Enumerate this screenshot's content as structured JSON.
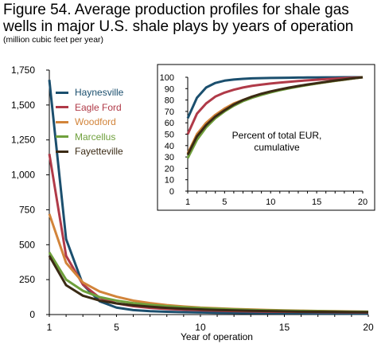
{
  "header": {
    "title": "Figure 54. Average production profiles for shale gas wells in major U.S. shale plays by years of operation",
    "subtitle": "(million cubic feet per year)"
  },
  "chart_data": [
    {
      "type": "line",
      "title": "",
      "xlabel": "Year of operation",
      "ylabel": "",
      "xlim": [
        1,
        20
      ],
      "ylim": [
        0,
        1750
      ],
      "x_ticks": [
        "1",
        "5",
        "10",
        "15",
        "20"
      ],
      "y_ticks": [
        "0",
        "250",
        "500",
        "750",
        "1,000",
        "1,250",
        "1,500",
        "1,750"
      ],
      "x": [
        1,
        2,
        3,
        4,
        5,
        6,
        7,
        8,
        9,
        10,
        11,
        12,
        13,
        14,
        15,
        16,
        17,
        18,
        19,
        20
      ],
      "legend_position": "top-left",
      "series": [
        {
          "name": "Haynesville",
          "color": "#1b4f6e",
          "values": [
            1680,
            540,
            215,
            95,
            50,
            32,
            24,
            20,
            17,
            15,
            13,
            12,
            11,
            10,
            9,
            9,
            8,
            8,
            7,
            7
          ]
        },
        {
          "name": "Eagle Ford",
          "color": "#b03a48",
          "values": [
            1150,
            420,
            215,
            120,
            80,
            60,
            48,
            40,
            35,
            31,
            28,
            25,
            23,
            21,
            20,
            19,
            18,
            17,
            16,
            15
          ]
        },
        {
          "name": "Woodford",
          "color": "#d2843a",
          "values": [
            720,
            370,
            230,
            165,
            128,
            100,
            82,
            68,
            58,
            50,
            45,
            40,
            36,
            33,
            30,
            28,
            26,
            24,
            22,
            21
          ]
        },
        {
          "name": "Marcellus",
          "color": "#6fa03c",
          "values": [
            445,
            250,
            170,
            125,
            100,
            82,
            70,
            60,
            52,
            46,
            41,
            37,
            33,
            30,
            28,
            26,
            24,
            22,
            21,
            20
          ]
        },
        {
          "name": "Fayetteville",
          "color": "#3a2a14",
          "values": [
            420,
            210,
            135,
            100,
            80,
            66,
            56,
            48,
            42,
            37,
            33,
            30,
            27,
            25,
            23,
            21,
            20,
            19,
            18,
            17
          ]
        }
      ]
    },
    {
      "type": "line",
      "title": "Percent of total EUR, cumulative",
      "xlabel": "",
      "ylabel": "",
      "xlim": [
        1,
        20
      ],
      "ylim": [
        0,
        100
      ],
      "x_ticks": [
        "1",
        "5",
        "10",
        "15",
        "20"
      ],
      "y_ticks": [
        "0",
        "10",
        "20",
        "30",
        "40",
        "50",
        "60",
        "70",
        "80",
        "90",
        "100"
      ],
      "x": [
        1,
        2,
        3,
        4,
        5,
        6,
        7,
        8,
        9,
        10,
        11,
        12,
        13,
        14,
        15,
        16,
        17,
        18,
        19,
        20
      ],
      "series": [
        {
          "color": "#1b4f6e",
          "values": [
            64,
            82,
            91,
            95,
            97,
            98,
            98.6,
            99,
            99.2,
            99.4,
            99.5,
            99.6,
            99.7,
            99.8,
            99.8,
            99.9,
            99.9,
            100,
            100,
            100
          ]
        },
        {
          "color": "#b03a48",
          "values": [
            50,
            68,
            77,
            83,
            86.5,
            89,
            91,
            92.5,
            93.5,
            94.5,
            95.3,
            96,
            96.7,
            97.3,
            97.8,
            98.3,
            98.8,
            99.2,
            99.6,
            100
          ]
        },
        {
          "color": "#d2843a",
          "values": [
            33,
            50,
            60,
            67,
            72.5,
            77,
            80,
            83,
            85,
            87,
            89,
            90.5,
            92,
            93.3,
            94.5,
            95.7,
            96.8,
            97.9,
            99,
            100
          ]
        },
        {
          "color": "#6fa03c",
          "values": [
            29,
            45,
            56,
            64,
            70,
            75,
            79,
            82,
            84.5,
            86.7,
            88.6,
            90.3,
            91.8,
            93.2,
            94.5,
            95.7,
            96.8,
            97.9,
            99,
            100
          ]
        },
        {
          "color": "#3a2a14",
          "values": [
            32,
            48,
            58,
            65.5,
            71,
            76,
            80,
            83,
            85.5,
            87.5,
            89.3,
            90.9,
            92.3,
            93.6,
            94.8,
            96,
            97.1,
            98.1,
            99.1,
            100
          ]
        }
      ]
    }
  ]
}
